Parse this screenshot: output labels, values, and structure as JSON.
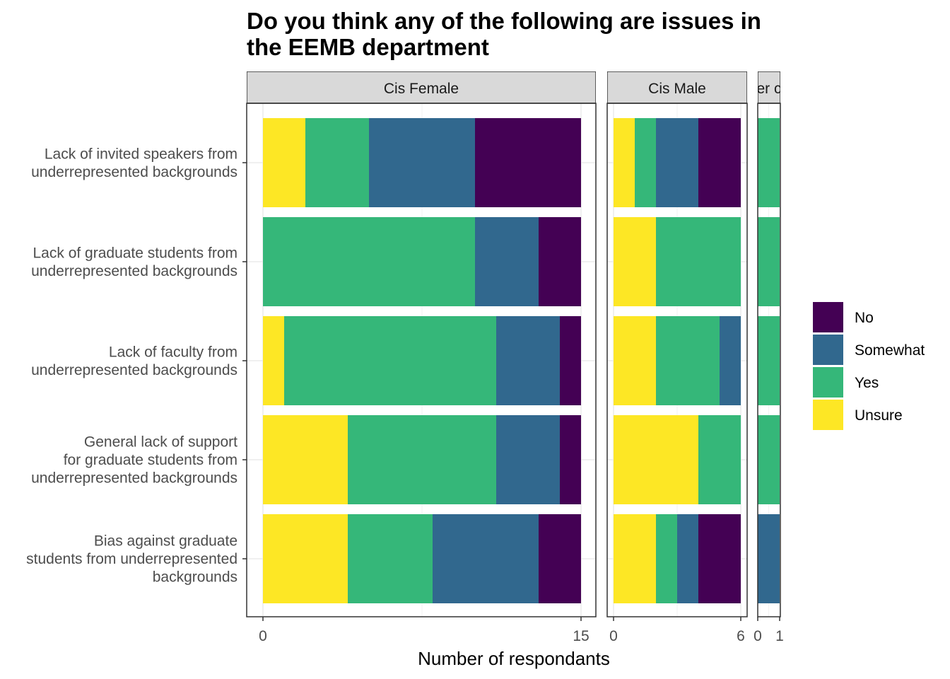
{
  "chart_data": {
    "type": "bar",
    "orientation": "horizontal",
    "stacked": true,
    "title": "Do you think any of the following are issues in the EEMB department",
    "title_lines": [
      "Do you think any of the following are issues in",
      "the EEMB department"
    ],
    "xlabel": "Number of respondants",
    "ylabel": "",
    "categories": [
      "Lack of invited speakers from underrepresented backgrounds",
      "Lack of graduate students from underrepresented backgrounds",
      "Lack of faculty from underrepresented backgrounds",
      "General lack of support for graduate students from underrepresented backgrounds",
      "Bias against graduate students from underrepresented backgrounds"
    ],
    "category_label_lines": [
      [
        "Lack of invited speakers from",
        "underrepresented backgrounds"
      ],
      [
        "Lack of graduate students from",
        "underrepresented backgrounds"
      ],
      [
        "Lack of faculty from",
        "underrepresented backgrounds"
      ],
      [
        "General lack of support",
        "for graduate students from",
        "underrepresented backgrounds"
      ],
      [
        "Bias against graduate",
        "students from underrepresented",
        "backgrounds"
      ]
    ],
    "stack_order": [
      "Unsure",
      "Yes",
      "Somewhat",
      "No"
    ],
    "colors": {
      "No": "#440154",
      "Somewhat": "#31688e",
      "Yes": "#35b779",
      "Unsure": "#fde725"
    },
    "legend": {
      "position": "right",
      "entries": [
        "No",
        "Somewhat",
        "Yes",
        "Unsure"
      ]
    },
    "grid": true,
    "panels": [
      {
        "facet": "Cis Female",
        "xlim": [
          0,
          15
        ],
        "ticks": [
          0,
          15
        ],
        "series": [
          {
            "name": "Unsure",
            "values": [
              2,
              0,
              1,
              4,
              4
            ]
          },
          {
            "name": "Yes",
            "values": [
              3,
              10,
              10,
              7,
              4
            ]
          },
          {
            "name": "Somewhat",
            "values": [
              5,
              3,
              3,
              3,
              5
            ]
          },
          {
            "name": "No",
            "values": [
              5,
              2,
              1,
              1,
              2
            ]
          }
        ]
      },
      {
        "facet": "Cis Male",
        "xlim": [
          0,
          6
        ],
        "ticks": [
          0,
          6
        ],
        "series": [
          {
            "name": "Unsure",
            "values": [
              1,
              2,
              2,
              4,
              2
            ]
          },
          {
            "name": "Yes",
            "values": [
              1,
              4,
              3,
              2,
              1
            ]
          },
          {
            "name": "Somewhat",
            "values": [
              2,
              0,
              1,
              0,
              1
            ]
          },
          {
            "name": "No",
            "values": [
              2,
              0,
              0,
              0,
              2
            ]
          }
        ]
      },
      {
        "facet": "er c",
        "xlim": [
          0,
          1
        ],
        "ticks": [
          0,
          1
        ],
        "series": [
          {
            "name": "Unsure",
            "values": [
              0,
              0,
              0,
              0,
              0
            ]
          },
          {
            "name": "Yes",
            "values": [
              1,
              1,
              1,
              1,
              0
            ]
          },
          {
            "name": "Somewhat",
            "values": [
              0,
              0,
              0,
              0,
              1
            ]
          },
          {
            "name": "No",
            "values": [
              0,
              0,
              0,
              0,
              0
            ]
          }
        ]
      }
    ]
  }
}
